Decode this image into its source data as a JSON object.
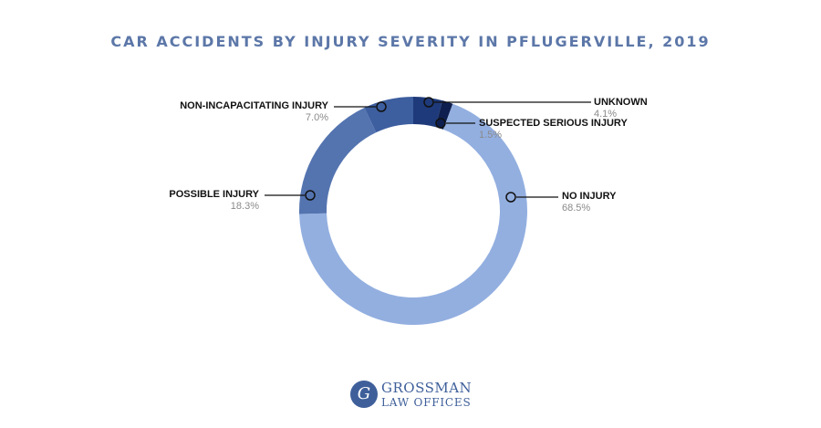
{
  "chart_data": {
    "type": "pie",
    "title": "CAR ACCIDENTS BY INJURY SEVERITY IN PFLUGERVILLE, 2019",
    "donut": true,
    "slices": [
      {
        "label": "NO INJURY",
        "value": 68.5,
        "value_label": "68.5%",
        "color": "#93afe0"
      },
      {
        "label": "POSSIBLE INJURY",
        "value": 18.3,
        "value_label": "18.3%",
        "color": "#5474b0"
      },
      {
        "label": "NON-INCAPACITATING INJURY",
        "value": 7.0,
        "value_label": "7.0%",
        "color": "#3d5e9f"
      },
      {
        "label": "UNKNOWN",
        "value": 4.1,
        "value_label": "4.1%",
        "color": "#1e3a7a"
      },
      {
        "label": "SUSPECTED SERIOUS INJURY",
        "value": 1.5,
        "value_label": "1.5%",
        "color": "#0e1f4f"
      }
    ]
  },
  "logo": {
    "emblem": "G",
    "line1": "GROSSMAN",
    "line2": "LAW OFFICES"
  }
}
